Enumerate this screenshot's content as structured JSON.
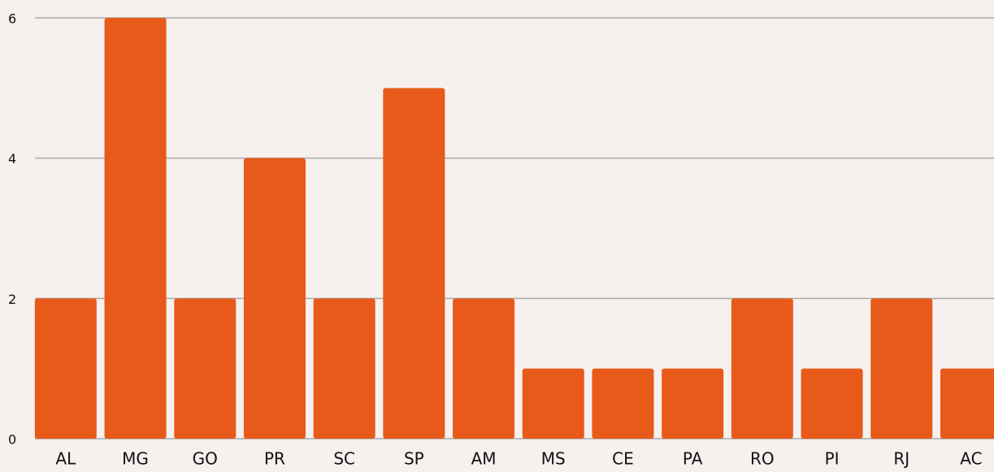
{
  "chart_data": {
    "type": "bar",
    "categories": [
      "AL",
      "MG",
      "GO",
      "PR",
      "SC",
      "SP",
      "AM",
      "MS",
      "CE",
      "PA",
      "RO",
      "PI",
      "RJ",
      "AC"
    ],
    "values": [
      2,
      6,
      2,
      4,
      2,
      5,
      2,
      1,
      1,
      1,
      2,
      1,
      2,
      1
    ],
    "color": "#e85a19",
    "ylim": [
      0,
      6
    ],
    "yticks": [
      0,
      2,
      4,
      6
    ],
    "grid": true
  }
}
